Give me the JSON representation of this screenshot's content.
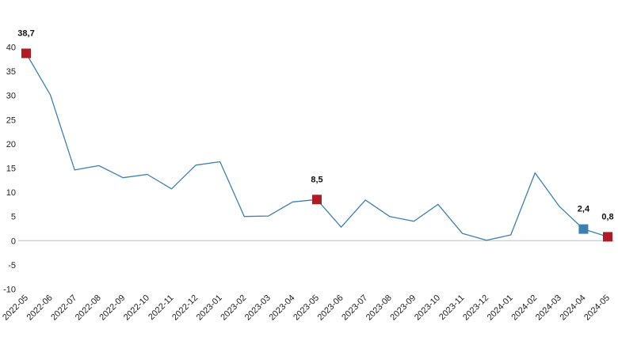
{
  "chart_data": {
    "type": "line",
    "title": "",
    "xlabel": "",
    "ylabel": "",
    "ylim": [
      -10,
      40
    ],
    "yticks": [
      40,
      35,
      30,
      25,
      20,
      15,
      10,
      5,
      0,
      -5,
      -10
    ],
    "grid": false,
    "line_color": "#3c7fb1",
    "axis_color": "#bfbfbf",
    "categories": [
      "2022-05",
      "2022-06",
      "2022-07",
      "2022-08",
      "2022-09",
      "2022-10",
      "2022-11",
      "2022-12",
      "2023-01",
      "2023-02",
      "2023-03",
      "2023-04",
      "2023-05",
      "2023-06",
      "2023-07",
      "2023-08",
      "2023-09",
      "2023-10",
      "2023-11",
      "2023-12",
      "2024-01",
      "2024-02",
      "2024-03",
      "2024-04",
      "2024-05"
    ],
    "series": [
      {
        "values": [
          38.7,
          30.1,
          14.6,
          15.5,
          13.0,
          13.7,
          10.7,
          15.6,
          16.3,
          5.0,
          5.1,
          8.0,
          8.5,
          2.8,
          8.4,
          5.0,
          4.0,
          7.5,
          1.5,
          0.1,
          1.2,
          14.0,
          7.1,
          2.4,
          0.8
        ]
      }
    ],
    "highlights": [
      {
        "index": 0,
        "label": "38,7",
        "color": "#b01c24"
      },
      {
        "index": 12,
        "label": "8,5",
        "color": "#b01c24"
      },
      {
        "index": 23,
        "label": "2,4",
        "color": "#3c7fb1"
      },
      {
        "index": 24,
        "label": "0,8",
        "color": "#b01c24"
      }
    ]
  }
}
